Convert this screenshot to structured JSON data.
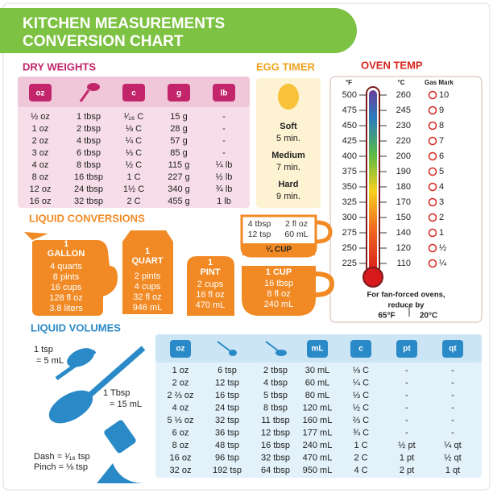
{
  "header": {
    "title": [
      "KITCHEN MEASUREMENTS",
      "CONVERSION CHART"
    ]
  },
  "dry_weights": {
    "title": "DRY WEIGHTS",
    "icon_labels": [
      "oz",
      "c",
      "g",
      "lb"
    ],
    "rows": [
      [
        "½ oz",
        "1 tbsp",
        "¹⁄₁₆ C",
        "15 g",
        "-"
      ],
      [
        "1 oz",
        "2 tbsp",
        "⅛ C",
        "28 g",
        "-"
      ],
      [
        "2 oz",
        "4 tbsp",
        "¼ C",
        "57 g",
        "-"
      ],
      [
        "3 oz",
        "6 tbsp",
        "⅓ C",
        "85 g",
        "-"
      ],
      [
        "4 oz",
        "8 tbsp",
        "½ C",
        "115 g",
        "¼ lb"
      ],
      [
        "8 oz",
        "16 tbsp",
        "1 C",
        "227 g",
        "½ lb"
      ],
      [
        "12 oz",
        "24 tbsp",
        "1½ C",
        "340 g",
        "¾ lb"
      ],
      [
        "16 oz",
        "32 tbsp",
        "2 C",
        "455 g",
        "1 lb"
      ]
    ]
  },
  "egg_timer": {
    "title": "EGG TIMER",
    "items": [
      {
        "label": "Soft",
        "time": "5 min."
      },
      {
        "label": "Medium",
        "time": "7 min."
      },
      {
        "label": "Hard",
        "time": "9 min."
      }
    ]
  },
  "oven_temp": {
    "title": "OVEN TEMP",
    "headers": [
      "°F",
      "°C",
      "Gas Mark"
    ],
    "rows": [
      [
        "500",
        "260",
        "10"
      ],
      [
        "475",
        "245",
        "9"
      ],
      [
        "450",
        "230",
        "8"
      ],
      [
        "425",
        "220",
        "7"
      ],
      [
        "400",
        "200",
        "6"
      ],
      [
        "375",
        "190",
        "5"
      ],
      [
        "350",
        "180",
        "4"
      ],
      [
        "325",
        "170",
        "3"
      ],
      [
        "300",
        "150",
        "2"
      ],
      [
        "275",
        "140",
        "1"
      ],
      [
        "250",
        "120",
        "½"
      ],
      [
        "225",
        "110",
        "¼"
      ]
    ],
    "note": [
      "For fan-forced ovens,",
      "reduce by"
    ],
    "reduce_f": "65°F",
    "reduce_c": "20°C"
  },
  "liquid_conversions": {
    "title": "LIQUID CONVERSIONS",
    "gallon": {
      "amount": "1",
      "unit": "GALLON",
      "lines": [
        "4 quarts",
        "8 pints",
        "16 cups",
        "128 fl oz",
        "3.8 liters"
      ]
    },
    "quart": {
      "amount": "1",
      "unit": "QUART",
      "lines": [
        "2 pints",
        "4 cups",
        "32 fl oz",
        "946 mL"
      ]
    },
    "pint": {
      "amount": "1",
      "unit": "PINT",
      "lines": [
        "2 cups",
        "16 fl oz",
        "470 mL"
      ]
    },
    "cup": {
      "unit": "1 CUP",
      "lines": [
        "16 tbsp",
        "8 fl oz",
        "240 mL"
      ]
    },
    "quarter_cup": {
      "unit": "¼ CUP",
      "lines": [
        "4 tbsp",
        "2 fl oz",
        "12 tsp",
        "60 mL"
      ]
    }
  },
  "liquid_volumes": {
    "title": "LIQUID VOLUMES",
    "tsp": [
      "1 tsp",
      "= 5 mL"
    ],
    "tbsp": [
      "1 Tbsp",
      "= 15 mL"
    ],
    "dash": "Dash = ¹⁄₁₆ tsp",
    "pinch": "Pinch = ⅛ tsp",
    "icon_labels": [
      "oz",
      "mL",
      "c",
      "pt",
      "qt"
    ],
    "rows": [
      [
        "1 oz",
        "6 tsp",
        "2 tbsp",
        "30 mL",
        "⅛ C",
        "-",
        "-"
      ],
      [
        "2 oz",
        "12 tsp",
        "4 tbsp",
        "60 mL",
        "¼ C",
        "-",
        "-"
      ],
      [
        "2 ⅔ oz",
        "16 tsp",
        "5 tbsp",
        "80 mL",
        "⅓ C",
        "-",
        "-"
      ],
      [
        "4 oz",
        "24 tsp",
        "8 tbsp",
        "120 mL",
        "½ C",
        "-",
        "-"
      ],
      [
        "5 ⅓ oz",
        "32 tsp",
        "11 tbsp",
        "160 mL",
        "⅔ C",
        "-",
        "-"
      ],
      [
        "6 oz",
        "36 tsp",
        "12 tbsp",
        "177 mL",
        "¾ C",
        "-",
        "-"
      ],
      [
        "8 oz",
        "48 tsp",
        "16 tbsp",
        "240 mL",
        "1 C",
        "½ pt",
        "¼ qt"
      ],
      [
        "16 oz",
        "96 tsp",
        "32 tbsp",
        "470 mL",
        "2 C",
        "1 pt",
        "½ qt"
      ],
      [
        "32 oz",
        "192 tsp",
        "64 tbsp",
        "950 mL",
        "4 C",
        "2 pt",
        "1 qt"
      ]
    ]
  }
}
